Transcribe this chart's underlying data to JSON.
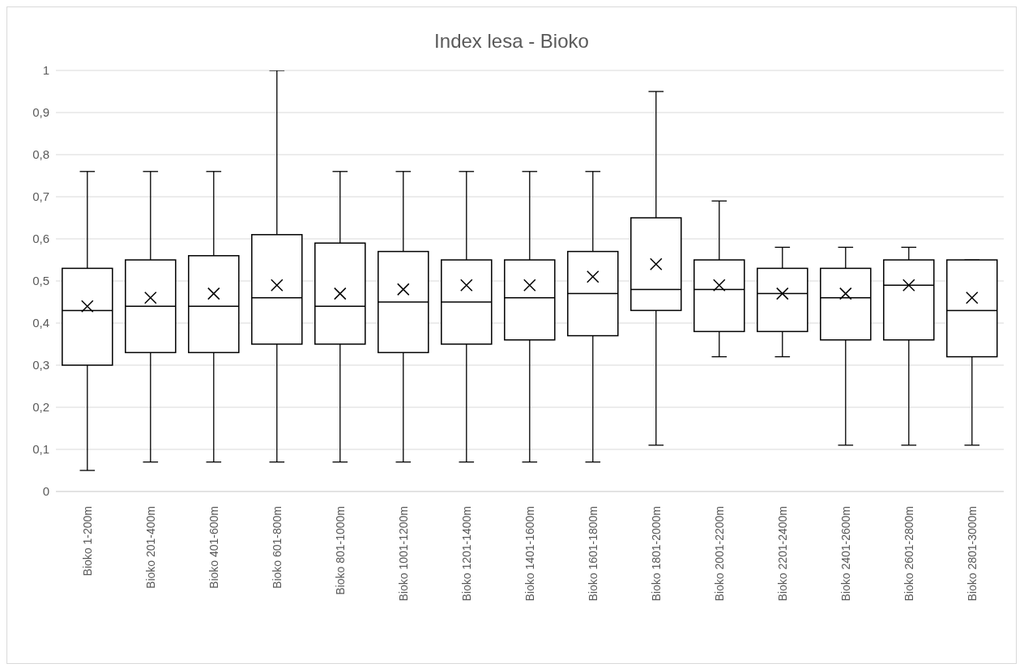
{
  "chart_data": {
    "type": "box",
    "title": "Index lesa - Bioko",
    "categories": [
      "Bioko 1-200m",
      "Bioko 201-400m",
      "Bioko 401-600m",
      "Bioko 601-800m",
      "Bioko 801-1000m",
      "Bioko 1001-1200m",
      "Bioko 1201-1400m",
      "Bioko 1401-1600m",
      "Bioko 1601-1800m",
      "Bioko 1801-2000m",
      "Bioko 2001-2200m",
      "Bioko 2201-2400m",
      "Bioko 2401-2600m",
      "Bioko 2601-2800m",
      "Bioko 2801-3000m"
    ],
    "boxes": [
      {
        "low": 0.05,
        "q1": 0.3,
        "median": 0.43,
        "q3": 0.53,
        "high": 0.76,
        "mean": 0.44
      },
      {
        "low": 0.07,
        "q1": 0.33,
        "median": 0.44,
        "q3": 0.55,
        "high": 0.76,
        "mean": 0.46
      },
      {
        "low": 0.07,
        "q1": 0.33,
        "median": 0.44,
        "q3": 0.56,
        "high": 0.76,
        "mean": 0.47
      },
      {
        "low": 0.07,
        "q1": 0.35,
        "median": 0.46,
        "q3": 0.61,
        "high": 1,
        "mean": 0.49
      },
      {
        "low": 0.07,
        "q1": 0.35,
        "median": 0.44,
        "q3": 0.59,
        "high": 0.76,
        "mean": 0.47
      },
      {
        "low": 0.07,
        "q1": 0.33,
        "median": 0.45,
        "q3": 0.57,
        "high": 0.76,
        "mean": 0.48
      },
      {
        "low": 0.07,
        "q1": 0.35,
        "median": 0.45,
        "q3": 0.55,
        "high": 0.76,
        "mean": 0.49
      },
      {
        "low": 0.07,
        "q1": 0.36,
        "median": 0.46,
        "q3": 0.55,
        "high": 0.76,
        "mean": 0.49
      },
      {
        "low": 0.07,
        "q1": 0.37,
        "median": 0.47,
        "q3": 0.57,
        "high": 0.76,
        "mean": 0.51
      },
      {
        "low": 0.11,
        "q1": 0.43,
        "median": 0.48,
        "q3": 0.65,
        "high": 0.95,
        "mean": 0.54
      },
      {
        "low": 0.32,
        "q1": 0.38,
        "median": 0.48,
        "q3": 0.55,
        "high": 0.69,
        "mean": 0.49
      },
      {
        "low": 0.32,
        "q1": 0.38,
        "median": 0.47,
        "q3": 0.53,
        "high": 0.58,
        "mean": 0.47
      },
      {
        "low": 0.11,
        "q1": 0.36,
        "median": 0.46,
        "q3": 0.53,
        "high": 0.58,
        "mean": 0.47
      },
      {
        "low": 0.11,
        "q1": 0.36,
        "median": 0.49,
        "q3": 0.55,
        "high": 0.58,
        "mean": 0.49
      },
      {
        "low": 0.11,
        "q1": 0.32,
        "median": 0.43,
        "q3": 0.55,
        "high": 0.55,
        "mean": 0.46
      }
    ],
    "ylim": [
      0,
      1
    ],
    "yticks": [
      0,
      {
        "value": 0.1,
        "label": "0,1"
      },
      {
        "value": 0.2,
        "label": "0,2"
      },
      {
        "value": 0.3,
        "label": "0,3"
      },
      {
        "value": 0.4,
        "label": "0,4"
      },
      {
        "value": 0.5,
        "label": "0,5"
      },
      {
        "value": 0.6,
        "label": "0,6"
      },
      {
        "value": 0.7,
        "label": "0,7"
      },
      {
        "value": 0.8,
        "label": "0,8"
      },
      {
        "value": 0.9,
        "label": "0,9"
      },
      1
    ],
    "grid": "y"
  }
}
